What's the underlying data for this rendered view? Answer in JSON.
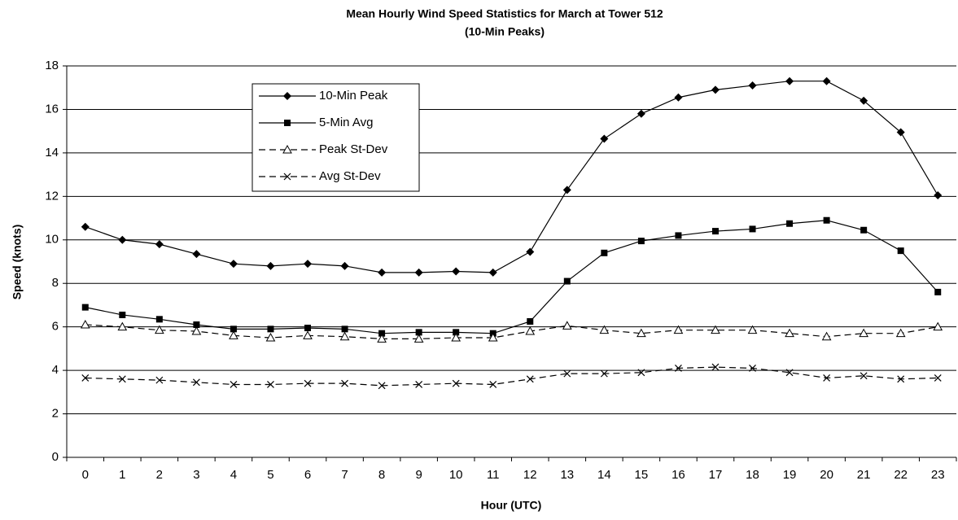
{
  "chart_data": {
    "type": "line",
    "title": "Mean Hourly Wind Speed Statistics for March at Tower 512",
    "subtitle": "(10-Min Peaks)",
    "x_label": "Hour (UTC)",
    "y_label": "Speed (knots)",
    "categories": [
      0,
      1,
      2,
      3,
      4,
      5,
      6,
      7,
      8,
      9,
      10,
      11,
      12,
      13,
      14,
      15,
      16,
      17,
      18,
      19,
      20,
      21,
      22,
      23
    ],
    "series": [
      {
        "name": "10-Min Peak",
        "color": "#000000",
        "marker": "diamond",
        "dash": false,
        "values": [
          10.6,
          10.0,
          9.8,
          9.35,
          8.9,
          8.8,
          8.9,
          8.8,
          8.5,
          8.5,
          8.55,
          8.5,
          9.45,
          12.3,
          14.65,
          15.8,
          16.55,
          16.9,
          17.1,
          17.3,
          17.3,
          16.4,
          14.95,
          12.05
        ]
      },
      {
        "name": "5-Min Avg",
        "color": "#000000",
        "marker": "square",
        "dash": false,
        "values": [
          6.9,
          6.55,
          6.35,
          6.1,
          5.9,
          5.9,
          5.95,
          5.9,
          5.7,
          5.75,
          5.75,
          5.7,
          6.25,
          8.1,
          9.4,
          9.95,
          10.2,
          10.4,
          10.5,
          10.75,
          10.9,
          10.45,
          9.5,
          7.6
        ]
      },
      {
        "name": "Peak St-Dev",
        "color": "#000000",
        "marker": "triangle",
        "dash": true,
        "values": [
          6.1,
          6.0,
          5.85,
          5.8,
          5.6,
          5.5,
          5.6,
          5.55,
          5.45,
          5.45,
          5.5,
          5.5,
          5.8,
          6.05,
          5.85,
          5.7,
          5.85,
          5.85,
          5.85,
          5.7,
          5.55,
          5.7,
          5.7,
          6.0
        ]
      },
      {
        "name": "Avg St-Dev",
        "color": "#000000",
        "marker": "x",
        "dash": true,
        "values": [
          3.65,
          3.6,
          3.55,
          3.45,
          3.35,
          3.35,
          3.4,
          3.4,
          3.3,
          3.35,
          3.4,
          3.35,
          3.6,
          3.85,
          3.85,
          3.9,
          4.1,
          4.15,
          4.1,
          3.9,
          3.65,
          3.75,
          3.6,
          3.65
        ]
      }
    ],
    "ylim": [
      0,
      18
    ],
    "yticks": [
      0,
      2,
      4,
      6,
      8,
      10,
      12,
      14,
      16,
      18
    ],
    "grid": true,
    "legend": "upper left"
  }
}
